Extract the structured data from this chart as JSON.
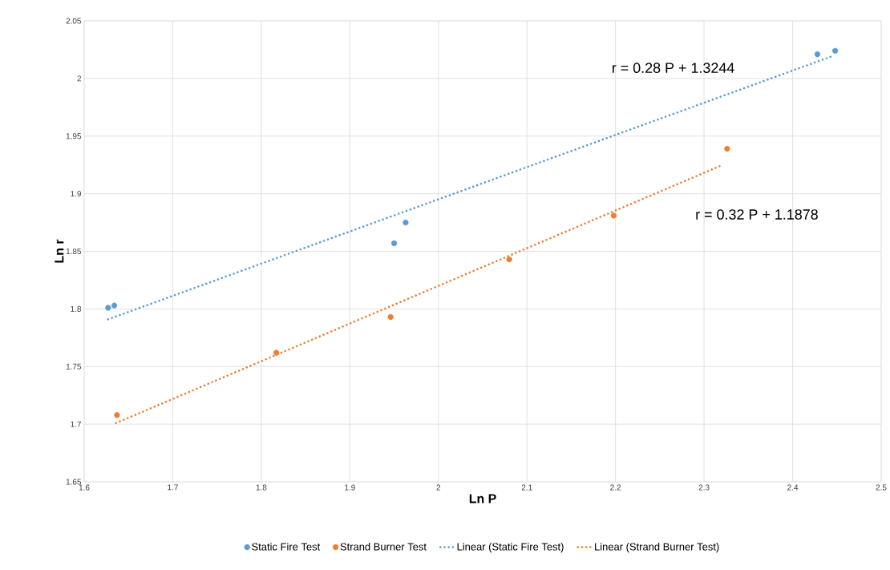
{
  "chart_data": {
    "type": "scatter",
    "xlabel": "Ln P",
    "ylabel": "Ln r",
    "xlim": [
      1.6,
      2.5
    ],
    "ylim": [
      1.65,
      2.05
    ],
    "xticks": [
      1.6,
      1.7,
      1.8,
      1.9,
      2,
      2.1,
      2.2,
      2.3,
      2.4,
      2.5
    ],
    "yticks": [
      1.65,
      1.7,
      1.75,
      1.8,
      1.85,
      1.9,
      1.95,
      2,
      2.05
    ],
    "grid": true,
    "legend": "bottom",
    "marker": "circle",
    "series": [
      {
        "name": "Static Fire Test",
        "color": "#5b9bd5",
        "x": [
          1.627,
          1.634,
          1.95,
          1.963,
          2.428,
          2.448
        ],
        "values": [
          1.801,
          1.803,
          1.857,
          1.875,
          2.021,
          2.024
        ]
      },
      {
        "name": "Strand Burner Test",
        "color": "#ed7d31",
        "x": [
          1.637,
          1.817,
          1.946,
          2.08,
          2.198,
          2.326
        ],
        "values": [
          1.708,
          1.762,
          1.793,
          1.843,
          1.881,
          1.939
        ]
      },
      {
        "name": "Linear (Static Fire Test)",
        "type": "line",
        "marker": "none",
        "line_style": "dotted",
        "color": "#5b9bd5",
        "x": [
          1.627,
          2.447
        ],
        "values": [
          1.791,
          2.02
        ]
      },
      {
        "name": "Linear (Strand Burner Test)",
        "type": "line",
        "marker": "none",
        "line_style": "dotted",
        "color": "#ed7d31",
        "x": [
          1.636,
          2.321
        ],
        "values": [
          1.701,
          1.925
        ]
      }
    ],
    "annotations": [
      "r = 0.28 P + 1.3244",
      "r = 0.32 P + 1.1878"
    ]
  }
}
